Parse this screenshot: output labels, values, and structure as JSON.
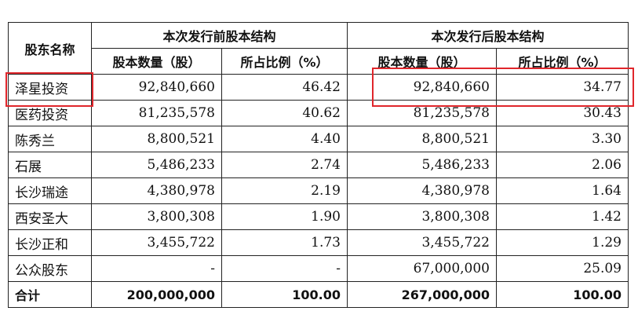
{
  "headers": {
    "name_col": "股东名称",
    "before_group": "本次发行前股本结构",
    "after_group": "本次发行后股本结构",
    "before_shares": "股本数量（股）",
    "before_ratio": "所占比例（%）",
    "after_shares": "股本数量（股）",
    "after_ratio": "所占比例（%）"
  },
  "rows": [
    {
      "name": "泽星投资",
      "before_shares": "92,840,660",
      "before_ratio": "46.42",
      "after_shares": "92,840,660",
      "after_ratio": "34.77"
    },
    {
      "name": "医药投资",
      "before_shares": "81,235,578",
      "before_ratio": "40.62",
      "after_shares": "81,235,578",
      "after_ratio": "30.43"
    },
    {
      "name": "陈秀兰",
      "before_shares": "8,800,521",
      "before_ratio": "4.40",
      "after_shares": "8,800,521",
      "after_ratio": "3.30"
    },
    {
      "name": "石展",
      "before_shares": "5,486,233",
      "before_ratio": "2.74",
      "after_shares": "5,486,233",
      "after_ratio": "2.06"
    },
    {
      "name": "长沙瑞途",
      "before_shares": "4,380,978",
      "before_ratio": "2.19",
      "after_shares": "4,380,978",
      "after_ratio": "1.64"
    },
    {
      "name": "西安圣大",
      "before_shares": "3,800,308",
      "before_ratio": "1.90",
      "after_shares": "3,800,308",
      "after_ratio": "1.42"
    },
    {
      "name": "长沙正和",
      "before_shares": "3,455,722",
      "before_ratio": "1.73",
      "after_shares": "3,455,722",
      "after_ratio": "1.29"
    },
    {
      "name": "公众股东",
      "before_shares": "-",
      "before_ratio": "-",
      "after_shares": "67,000,000",
      "after_ratio": "25.09"
    }
  ],
  "total": {
    "name": "合计",
    "before_shares": "200,000,000",
    "before_ratio": "100.00",
    "after_shares": "267,000,000",
    "after_ratio": "100.00"
  },
  "highlight_color": "#e0262b"
}
